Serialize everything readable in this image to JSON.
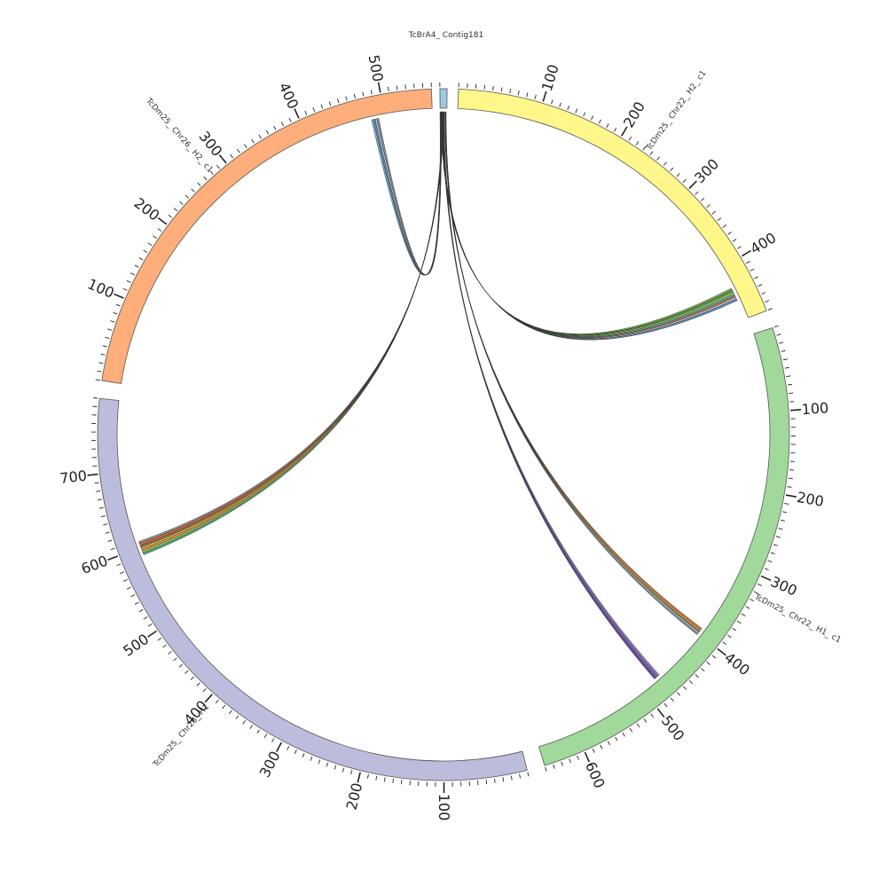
{
  "chart_data": {
    "type": "chord",
    "segments": [
      {
        "name": "TcBrA4_ Contig181",
        "color": "#9ecae1",
        "start": 0,
        "end": 6,
        "ticks": []
      },
      {
        "name": "TcDm25_ Chr22_ H2_ c1",
        "color": "#fff78a",
        "start": 0,
        "end": 470,
        "ticks": [
          100,
          200,
          300,
          400
        ]
      },
      {
        "name": "TcDm25_ Chr22_ H1_ c1",
        "color": "#a1d99b",
        "start": 0,
        "end": 650,
        "ticks": [
          100,
          200,
          300,
          400,
          500,
          600
        ]
      },
      {
        "name": "TcDm25_ Chr26_ H1",
        "color": "#bcbddc",
        "start": 0,
        "end": 790,
        "ticks": [
          100,
          200,
          300,
          400,
          500,
          600,
          700
        ]
      },
      {
        "name": "TcDm25_ Chr26_ H2_ c1",
        "color": "#fdae7b",
        "start": 0,
        "end": 560,
        "ticks": [
          100,
          200,
          300,
          400,
          500
        ]
      }
    ],
    "links": [
      {
        "from": "TcBrA4_ Contig181",
        "to": "TcDm25_ Chr22_ H2_ c1",
        "target_range": [
          428,
          445
        ],
        "colors": [
          "#6a9f3a",
          "#2ca02c",
          "#bcbd22",
          "#17becf",
          "#e6550d",
          "#9ecae1",
          "#4a7fb5"
        ]
      },
      {
        "from": "TcBrA4_ Contig181",
        "to": "TcDm25_ Chr22_ H1_ c1",
        "target_range": [
          392,
          402
        ],
        "colors": [
          "#e6550d",
          "#d9a441",
          "#8c6d31",
          "#9ecae1",
          "#7f7f7f"
        ]
      },
      {
        "from": "TcBrA4_ Contig181",
        "to": "TcDm25_ Chr22_ H1_ c1",
        "target_range": [
          472,
          480
        ],
        "colors": [
          "#756bb1",
          "#6a51a3",
          "#54278f"
        ]
      },
      {
        "from": "TcBrA4_ Contig181",
        "to": "TcDm25_ Chr26_ H1",
        "target_range": [
          590,
          608
        ],
        "colors": [
          "#31a354",
          "#74c476",
          "#ff7f0e",
          "#bcbd22",
          "#8c564b",
          "#e6550d",
          "#7f7f7f"
        ]
      },
      {
        "from": "TcBrA4_ Contig181",
        "to": "TcDm25_ Chr26_ H2_ c1",
        "target_range": [
          483,
          492
        ],
        "colors": [
          "#6baed6",
          "#4a7fb5",
          "#9ecae1",
          "#7f7f7f"
        ]
      }
    ]
  }
}
